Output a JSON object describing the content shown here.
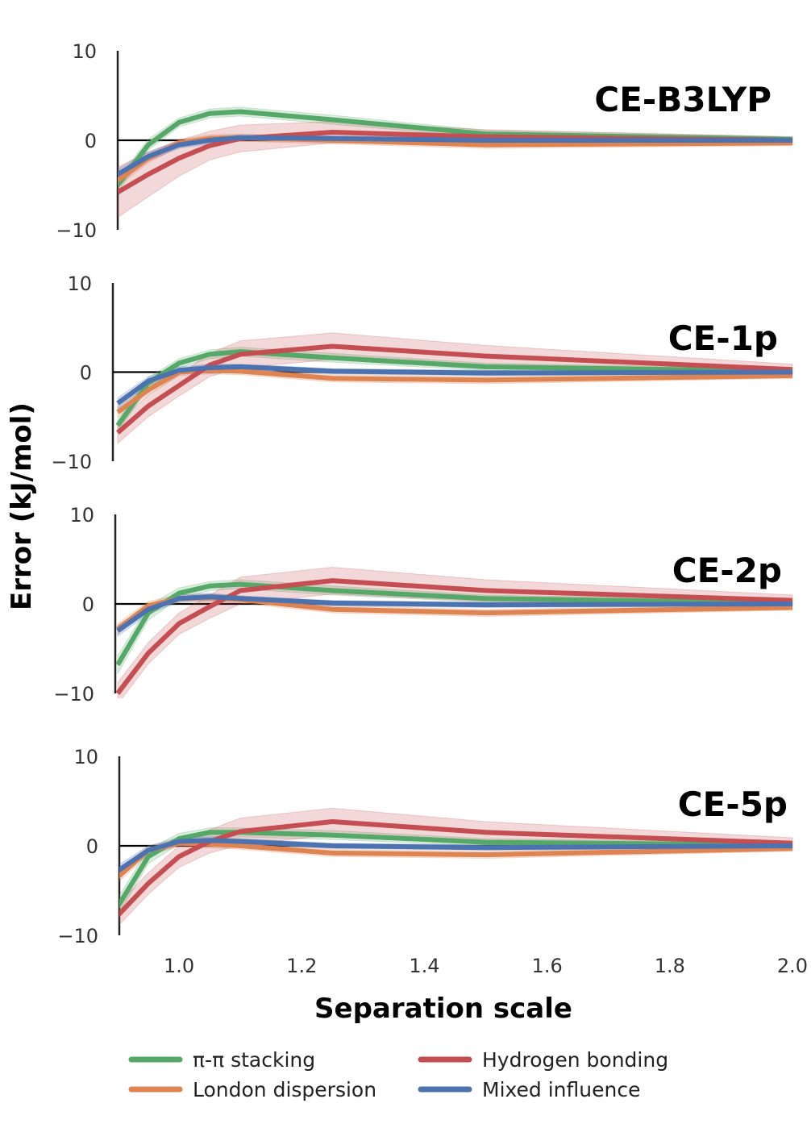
{
  "chart_data": {
    "type": "line",
    "xlabel": "Separation scale",
    "ylabel": "Error (kJ/mol)",
    "xlim": [
      0.9,
      2.0
    ],
    "ylim": [
      -10,
      10
    ],
    "x": [
      0.9,
      0.95,
      1.0,
      1.05,
      1.1,
      1.25,
      1.5,
      2.0
    ],
    "xticks": [
      1.0,
      1.2,
      1.4,
      1.6,
      1.8,
      2.0
    ],
    "xtick_labels": [
      "1.0",
      "1.2",
      "1.4",
      "1.6",
      "1.8",
      "2.0"
    ],
    "yticks": [
      10,
      0,
      -10
    ],
    "ytick_labels": [
      "10",
      "0",
      "−10"
    ],
    "grid": false,
    "legend_position": "bottom",
    "series_styles": [
      {
        "key": "pi",
        "color": "#55a868"
      },
      {
        "key": "london",
        "color": "#dd8452"
      },
      {
        "key": "hbond",
        "color": "#c44e52"
      },
      {
        "key": "mixed",
        "color": "#4c72b0"
      }
    ],
    "legend": [
      {
        "key": "pi",
        "label": "π-π stacking"
      },
      {
        "key": "hbond",
        "label": "Hydrogen bonding"
      },
      {
        "key": "london",
        "label": "London dispersion"
      },
      {
        "key": "mixed",
        "label": "Mixed influence"
      }
    ],
    "panels": [
      {
        "title": "CE-B3LYP",
        "series": [
          {
            "key": "pi",
            "values": [
              -5.0,
              -0.5,
              2.0,
              3.0,
              3.2,
              2.3,
              0.7,
              0.1
            ],
            "band": [
              0.7,
              0.6,
              0.5,
              0.5,
              0.5,
              0.5,
              0.4,
              0.3
            ]
          },
          {
            "key": "london",
            "values": [
              -4.5,
              -2.0,
              -0.3,
              0.2,
              0.3,
              0.0,
              -0.5,
              -0.3
            ],
            "band": [
              0.6,
              0.5,
              0.4,
              0.4,
              0.4,
              0.4,
              0.4,
              0.3
            ]
          },
          {
            "key": "hbond",
            "values": [
              -5.8,
              -3.8,
              -2.0,
              -0.6,
              0.2,
              0.9,
              0.4,
              0.0
            ],
            "band": [
              2.8,
              2.5,
              2.0,
              1.6,
              1.5,
              1.2,
              0.8,
              0.4
            ]
          },
          {
            "key": "mixed",
            "values": [
              -3.8,
              -1.8,
              -0.5,
              0.0,
              0.3,
              0.2,
              0.0,
              0.0
            ],
            "band": [
              0.6,
              0.5,
              0.4,
              0.4,
              0.3,
              0.3,
              0.3,
              0.2
            ]
          }
        ]
      },
      {
        "title": "CE-1p",
        "series": [
          {
            "key": "pi",
            "values": [
              -6.0,
              -1.2,
              1.0,
              2.0,
              2.3,
              1.6,
              0.6,
              0.1
            ],
            "band": [
              0.7,
              0.6,
              0.5,
              0.5,
              0.5,
              0.5,
              0.4,
              0.3
            ]
          },
          {
            "key": "london",
            "values": [
              -4.5,
              -2.0,
              0.0,
              0.2,
              0.1,
              -0.7,
              -0.9,
              -0.4
            ],
            "band": [
              0.6,
              0.5,
              0.4,
              0.4,
              0.4,
              0.4,
              0.4,
              0.3
            ]
          },
          {
            "key": "hbond",
            "values": [
              -6.8,
              -3.8,
              -1.5,
              0.8,
              2.0,
              2.9,
              1.8,
              0.3
            ],
            "band": [
              1.2,
              1.2,
              1.2,
              1.3,
              1.5,
              1.5,
              1.2,
              0.6
            ]
          },
          {
            "key": "mixed",
            "values": [
              -3.5,
              -1.0,
              0.2,
              0.5,
              0.6,
              0.1,
              -0.1,
              0.0
            ],
            "band": [
              0.6,
              0.5,
              0.4,
              0.4,
              0.3,
              0.3,
              0.3,
              0.2
            ]
          }
        ]
      },
      {
        "title": "CE-2p",
        "series": [
          {
            "key": "pi",
            "values": [
              -6.8,
              -1.0,
              1.2,
              2.0,
              2.2,
              1.5,
              0.6,
              0.1
            ],
            "band": [
              1.0,
              0.8,
              0.6,
              0.5,
              0.5,
              0.5,
              0.4,
              0.3
            ]
          },
          {
            "key": "london",
            "values": [
              -2.8,
              -0.2,
              0.6,
              0.7,
              0.5,
              -0.6,
              -1.0,
              -0.4
            ],
            "band": [
              0.6,
              0.5,
              0.4,
              0.4,
              0.4,
              0.4,
              0.4,
              0.3
            ]
          },
          {
            "key": "hbond",
            "values": [
              -10.0,
              -5.5,
              -2.2,
              -0.3,
              1.5,
              2.6,
              1.5,
              0.4
            ],
            "band": [
              1.2,
              1.2,
              1.2,
              1.3,
              1.5,
              1.5,
              1.2,
              0.6
            ]
          },
          {
            "key": "mixed",
            "values": [
              -3.0,
              -0.6,
              0.6,
              0.8,
              0.6,
              0.1,
              -0.1,
              0.0
            ],
            "band": [
              0.6,
              0.5,
              0.4,
              0.4,
              0.3,
              0.3,
              0.3,
              0.2
            ]
          }
        ]
      },
      {
        "title": "CE-5p",
        "series": [
          {
            "key": "pi",
            "values": [
              -6.8,
              -1.2,
              0.8,
              1.5,
              1.5,
              1.2,
              0.4,
              0.1
            ],
            "band": [
              1.0,
              0.8,
              0.6,
              0.5,
              0.5,
              0.5,
              0.4,
              0.3
            ]
          },
          {
            "key": "london",
            "values": [
              -3.5,
              -0.5,
              0.3,
              0.2,
              0.0,
              -0.8,
              -1.0,
              -0.3
            ],
            "band": [
              0.6,
              0.5,
              0.4,
              0.4,
              0.4,
              0.4,
              0.4,
              0.3
            ]
          },
          {
            "key": "hbond",
            "values": [
              -7.8,
              -4.2,
              -1.2,
              0.5,
              1.6,
              2.7,
              1.5,
              0.3
            ],
            "band": [
              1.2,
              1.2,
              1.2,
              1.3,
              1.5,
              1.5,
              1.2,
              0.6
            ]
          },
          {
            "key": "mixed",
            "values": [
              -2.8,
              -0.5,
              0.5,
              0.6,
              0.5,
              0.0,
              -0.2,
              0.0
            ],
            "band": [
              0.6,
              0.5,
              0.4,
              0.4,
              0.3,
              0.3,
              0.3,
              0.2
            ]
          }
        ]
      }
    ]
  }
}
